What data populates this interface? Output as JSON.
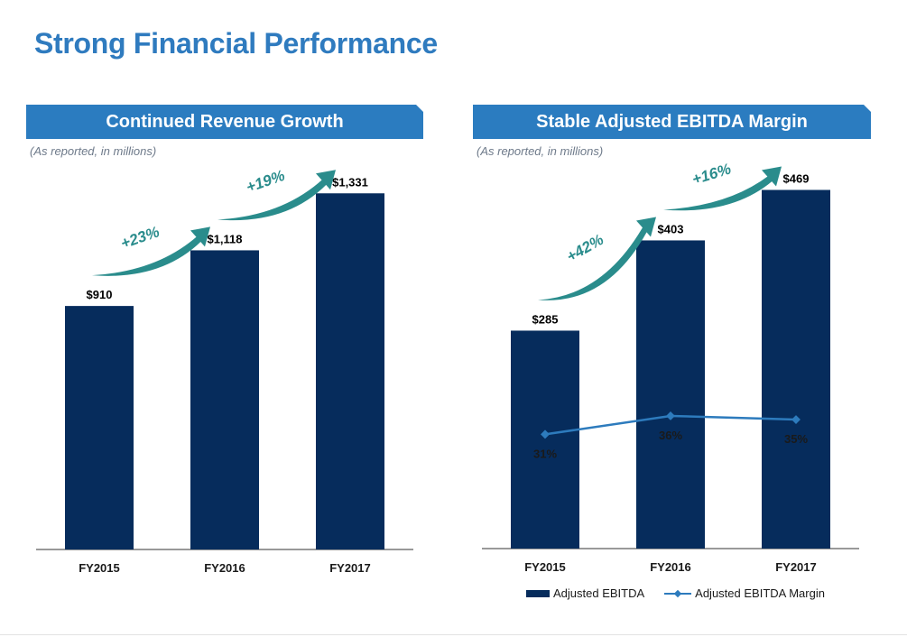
{
  "page": {
    "title": "Strong Financial Performance"
  },
  "colors": {
    "bar": "#062c5c",
    "title": "#2f7bbf",
    "banner": "#2b7cc0",
    "arrow": "#2a8c8c",
    "margin_line": "#2d7bbd"
  },
  "chart_data": [
    {
      "type": "bar",
      "title": "Continued Revenue Growth",
      "subtitle": "(As reported, in millions)",
      "categories": [
        "FY2015",
        "FY2016",
        "FY2017"
      ],
      "values": [
        910,
        1118,
        1331
      ],
      "data_labels": [
        "$910",
        "$1,118",
        "$1,331"
      ],
      "growth_annotations": [
        "+23%",
        "+19%"
      ],
      "ylim": [
        0,
        1750
      ],
      "xlabel": "",
      "ylabel": ""
    },
    {
      "type": "bar",
      "title": "Stable Adjusted EBITDA Margin",
      "subtitle": "(As reported, in millions)",
      "categories": [
        "FY2015",
        "FY2016",
        "FY2017"
      ],
      "series": [
        {
          "name": "Adjusted EBITDA",
          "type": "bar",
          "values": [
            285,
            403,
            469
          ],
          "data_labels": [
            "$285",
            "$403",
            "$469"
          ]
        },
        {
          "name": "Adjusted EBITDA Margin",
          "type": "line",
          "values": [
            31,
            36,
            35
          ],
          "data_labels": [
            "31%",
            "36%",
            "35%"
          ],
          "ylim": [
            0,
            100
          ]
        }
      ],
      "growth_annotations": [
        "+42%",
        "+16%"
      ],
      "ylim": [
        0,
        610
      ],
      "legend": [
        "Adjusted EBITDA",
        "Adjusted EBITDA Margin"
      ],
      "xlabel": "",
      "ylabel": ""
    }
  ]
}
